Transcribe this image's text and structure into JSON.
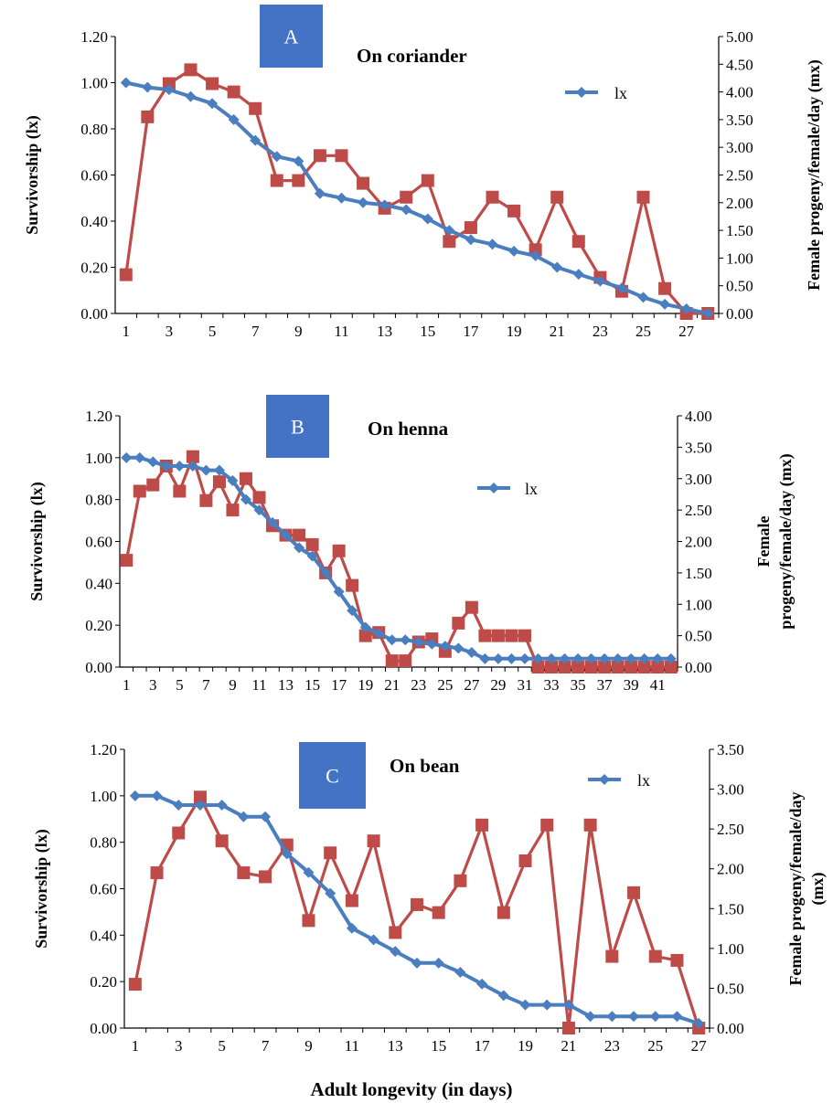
{
  "figure": {
    "xlabel": "Adult longevity (in days)"
  },
  "chart_data": [
    {
      "type": "line",
      "panel": "A",
      "title": "On coriander",
      "xlabel": "",
      "ylabel": "Survivorship (lx)",
      "y2label": "Female progeny/female/day (mx)",
      "ylim": [
        0,
        1.2
      ],
      "y2lim": [
        0,
        5
      ],
      "yticks": [
        "0.00",
        "0.20",
        "0.40",
        "0.60",
        "0.80",
        "1.00",
        "1.20"
      ],
      "y2ticks": [
        "0.00",
        "0.50",
        "1.00",
        "1.50",
        "2.00",
        "2.50",
        "3.00",
        "3.50",
        "4.00",
        "4.50",
        "5.00"
      ],
      "xticks": [
        "1",
        "3",
        "5",
        "7",
        "9",
        "11",
        "13",
        "15",
        "17",
        "19",
        "21",
        "23",
        "25",
        "27"
      ],
      "x": [
        1,
        2,
        3,
        4,
        5,
        6,
        7,
        8,
        9,
        10,
        11,
        12,
        13,
        14,
        15,
        16,
        17,
        18,
        19,
        20,
        21,
        22,
        23,
        24,
        25,
        26,
        27,
        28
      ],
      "legend": [
        "lx"
      ],
      "legend_position": "top-right",
      "series": [
        {
          "name": "lx",
          "axis": "left",
          "color": "#4a7ebf",
          "marker": "diamond",
          "values": [
            1.0,
            0.98,
            0.97,
            0.94,
            0.91,
            0.84,
            0.75,
            0.68,
            0.66,
            0.52,
            0.5,
            0.48,
            0.47,
            0.45,
            0.41,
            0.36,
            0.32,
            0.3,
            0.27,
            0.25,
            0.2,
            0.17,
            0.14,
            0.11,
            0.07,
            0.04,
            0.02,
            0.0
          ]
        },
        {
          "axis": "right",
          "color": "#be4b48",
          "marker": "square",
          "values": [
            0.7,
            3.55,
            4.15,
            4.4,
            4.15,
            4.0,
            3.7,
            2.4,
            2.4,
            2.85,
            2.85,
            2.35,
            1.9,
            2.1,
            2.4,
            1.3,
            1.55,
            2.1,
            1.85,
            1.15,
            2.1,
            1.3,
            0.65,
            0.4,
            2.1,
            0.45,
            0.0,
            0.0
          ]
        }
      ]
    },
    {
      "type": "line",
      "panel": "B",
      "title": "On henna",
      "xlabel": "",
      "ylabel": "Survivorship (lx)",
      "y2label_lines": [
        "Female",
        "progeny/female/day (mx)"
      ],
      "ylim": [
        0,
        1.2
      ],
      "y2lim": [
        0,
        4
      ],
      "yticks": [
        "0.00",
        "0.20",
        "0.40",
        "0.60",
        "0.80",
        "1.00",
        "1.20"
      ],
      "y2ticks": [
        "0.00",
        "0.50",
        "1.00",
        "1.50",
        "2.00",
        "2.50",
        "3.00",
        "3.50",
        "4.00"
      ],
      "xticks": [
        "1",
        "3",
        "5",
        "7",
        "9",
        "11",
        "13",
        "15",
        "17",
        "19",
        "21",
        "23",
        "25",
        "27",
        "29",
        "31",
        "33",
        "35",
        "37",
        "39",
        "41"
      ],
      "x": [
        1,
        2,
        3,
        4,
        5,
        6,
        7,
        8,
        9,
        10,
        11,
        12,
        13,
        14,
        15,
        16,
        17,
        18,
        19,
        20,
        21,
        22,
        23,
        24,
        25,
        26,
        27,
        28,
        29,
        30,
        31,
        32,
        33,
        34,
        35,
        36,
        37,
        38,
        39,
        40,
        41,
        42
      ],
      "legend": [
        "lx"
      ],
      "legend_position": "top-right",
      "series": [
        {
          "name": "lx",
          "axis": "left",
          "color": "#4a7ebf",
          "marker": "diamond",
          "values": [
            1.0,
            1.0,
            0.98,
            0.96,
            0.96,
            0.96,
            0.94,
            0.94,
            0.89,
            0.8,
            0.75,
            0.69,
            0.63,
            0.57,
            0.53,
            0.45,
            0.36,
            0.27,
            0.19,
            0.16,
            0.13,
            0.13,
            0.12,
            0.11,
            0.1,
            0.09,
            0.07,
            0.04,
            0.04,
            0.04,
            0.04,
            0.04,
            0.04,
            0.04,
            0.04,
            0.04,
            0.04,
            0.04,
            0.04,
            0.04,
            0.04,
            0.04
          ]
        },
        {
          "axis": "right",
          "color": "#be4b48",
          "marker": "square",
          "values": [
            1.7,
            2.8,
            2.9,
            3.2,
            2.8,
            3.35,
            2.65,
            2.95,
            2.5,
            3.0,
            2.7,
            2.25,
            2.1,
            2.1,
            1.95,
            1.5,
            1.85,
            1.3,
            0.5,
            0.55,
            0.1,
            0.1,
            0.4,
            0.45,
            0.25,
            0.7,
            0.95,
            0.5,
            0.5,
            0.5,
            0.5,
            0.0,
            0.0,
            0.0,
            0.0,
            0.0,
            0.0,
            0.0,
            0.0,
            0.0,
            0.0,
            0.0
          ]
        }
      ]
    },
    {
      "type": "line",
      "panel": "C",
      "title": "On bean",
      "xlabel": "Adult longevity (in days)",
      "ylabel": "Survivorship (lx)",
      "y2label_lines": [
        "Female progeny/female/day",
        "(mx)"
      ],
      "ylim": [
        0,
        1.2
      ],
      "y2lim": [
        0,
        3.5
      ],
      "yticks": [
        "0.00",
        "0.20",
        "0.40",
        "0.60",
        "0.80",
        "1.00",
        "1.20"
      ],
      "y2ticks": [
        "0.00",
        "0.50",
        "1.00",
        "1.50",
        "2.00",
        "2.50",
        "3.00",
        "3.50"
      ],
      "xticks": [
        "1",
        "3",
        "5",
        "7",
        "9",
        "11",
        "13",
        "15",
        "17",
        "19",
        "21",
        "23",
        "25",
        "27"
      ],
      "x": [
        1,
        2,
        3,
        4,
        5,
        6,
        7,
        8,
        9,
        10,
        11,
        12,
        13,
        14,
        15,
        16,
        17,
        18,
        19,
        20,
        21,
        22,
        23,
        24,
        25,
        26,
        27
      ],
      "legend": [
        "lx"
      ],
      "legend_position": "top-right",
      "series": [
        {
          "name": "lx",
          "axis": "left",
          "color": "#4a7ebf",
          "marker": "diamond",
          "values": [
            1.0,
            1.0,
            0.96,
            0.96,
            0.96,
            0.91,
            0.91,
            0.75,
            0.67,
            0.58,
            0.43,
            0.38,
            0.33,
            0.28,
            0.28,
            0.24,
            0.19,
            0.14,
            0.1,
            0.1,
            0.1,
            0.05,
            0.05,
            0.05,
            0.05,
            0.05,
            0.02
          ]
        },
        {
          "axis": "right",
          "color": "#be4b48",
          "marker": "square",
          "values": [
            0.55,
            1.95,
            2.45,
            2.9,
            2.35,
            1.95,
            1.9,
            2.3,
            1.35,
            2.2,
            1.6,
            2.35,
            1.2,
            1.55,
            1.45,
            1.85,
            2.55,
            1.45,
            2.1,
            2.55,
            0.0,
            2.55,
            0.9,
            1.7,
            0.9,
            0.85,
            0.0
          ]
        }
      ]
    }
  ]
}
